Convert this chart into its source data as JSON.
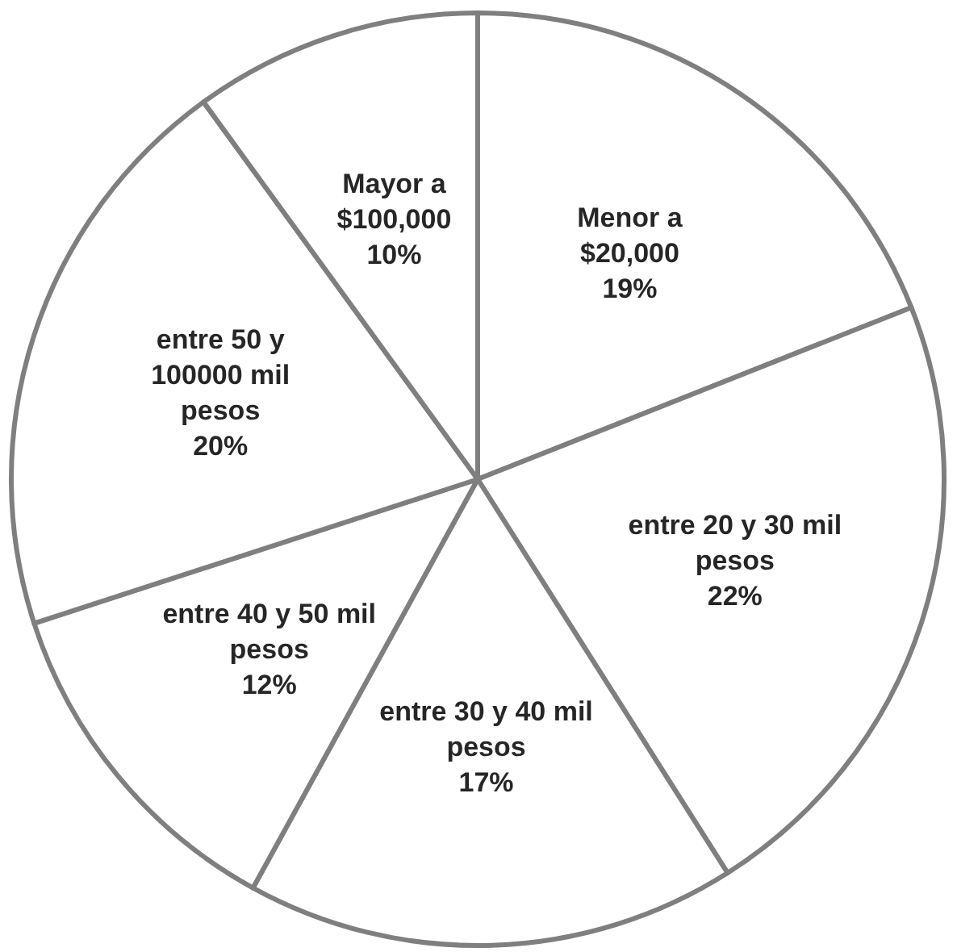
{
  "chart_data": {
    "type": "pie",
    "categories": [
      "Menor a\n$20,000",
      "entre 20 y 30 mil\npesos",
      "entre 30 y 40 mil\npesos",
      "entre 40 y 50 mil\npesos",
      "entre 50 y\n100000 mil\npesos",
      "Mayor a\n$100,000"
    ],
    "values": [
      19,
      22,
      17,
      12,
      20,
      10
    ],
    "value_labels": [
      "19%",
      "22%",
      "17%",
      "12%",
      "20%",
      "10%"
    ],
    "colors": [
      "#ffffff",
      "#ffffff",
      "#ffffff",
      "#ffffff",
      "#ffffff",
      "#ffffff"
    ]
  }
}
